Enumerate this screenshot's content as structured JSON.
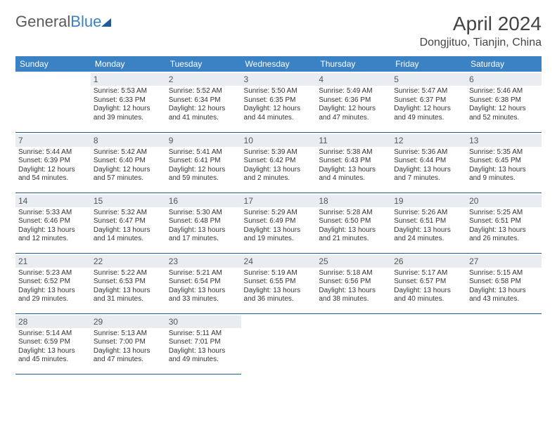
{
  "brand": {
    "part1": "General",
    "part2": "Blue"
  },
  "title": "April 2024",
  "location": "Dongjituo, Tianjin, China",
  "colors": {
    "header_bg": "#3b82c4",
    "header_text": "#ffffff",
    "daynum_bg": "#e9edf1",
    "daynum_text": "#555555",
    "cell_border": "#1f5b94",
    "body_text": "#333333",
    "logo_gray": "#5a5a5a",
    "logo_blue": "#3b82c4",
    "logo_tri": "#1f5b94"
  },
  "fonts": {
    "title_pt": 28,
    "location_pt": 16,
    "header_pt": 12,
    "daynum_pt": 12,
    "body_pt": 10
  },
  "weekdays": [
    "Sunday",
    "Monday",
    "Tuesday",
    "Wednesday",
    "Thursday",
    "Friday",
    "Saturday"
  ],
  "grid": {
    "rows": 5,
    "cols": 7,
    "first_weekday_index": 1,
    "days_in_month": 30
  },
  "days": {
    "1": {
      "sunrise": "5:53 AM",
      "sunset": "6:33 PM",
      "daylight": "12 hours and 39 minutes."
    },
    "2": {
      "sunrise": "5:52 AM",
      "sunset": "6:34 PM",
      "daylight": "12 hours and 41 minutes."
    },
    "3": {
      "sunrise": "5:50 AM",
      "sunset": "6:35 PM",
      "daylight": "12 hours and 44 minutes."
    },
    "4": {
      "sunrise": "5:49 AM",
      "sunset": "6:36 PM",
      "daylight": "12 hours and 47 minutes."
    },
    "5": {
      "sunrise": "5:47 AM",
      "sunset": "6:37 PM",
      "daylight": "12 hours and 49 minutes."
    },
    "6": {
      "sunrise": "5:46 AM",
      "sunset": "6:38 PM",
      "daylight": "12 hours and 52 minutes."
    },
    "7": {
      "sunrise": "5:44 AM",
      "sunset": "6:39 PM",
      "daylight": "12 hours and 54 minutes."
    },
    "8": {
      "sunrise": "5:42 AM",
      "sunset": "6:40 PM",
      "daylight": "12 hours and 57 minutes."
    },
    "9": {
      "sunrise": "5:41 AM",
      "sunset": "6:41 PM",
      "daylight": "12 hours and 59 minutes."
    },
    "10": {
      "sunrise": "5:39 AM",
      "sunset": "6:42 PM",
      "daylight": "13 hours and 2 minutes."
    },
    "11": {
      "sunrise": "5:38 AM",
      "sunset": "6:43 PM",
      "daylight": "13 hours and 4 minutes."
    },
    "12": {
      "sunrise": "5:36 AM",
      "sunset": "6:44 PM",
      "daylight": "13 hours and 7 minutes."
    },
    "13": {
      "sunrise": "5:35 AM",
      "sunset": "6:45 PM",
      "daylight": "13 hours and 9 minutes."
    },
    "14": {
      "sunrise": "5:33 AM",
      "sunset": "6:46 PM",
      "daylight": "13 hours and 12 minutes."
    },
    "15": {
      "sunrise": "5:32 AM",
      "sunset": "6:47 PM",
      "daylight": "13 hours and 14 minutes."
    },
    "16": {
      "sunrise": "5:30 AM",
      "sunset": "6:48 PM",
      "daylight": "13 hours and 17 minutes."
    },
    "17": {
      "sunrise": "5:29 AM",
      "sunset": "6:49 PM",
      "daylight": "13 hours and 19 minutes."
    },
    "18": {
      "sunrise": "5:28 AM",
      "sunset": "6:50 PM",
      "daylight": "13 hours and 21 minutes."
    },
    "19": {
      "sunrise": "5:26 AM",
      "sunset": "6:51 PM",
      "daylight": "13 hours and 24 minutes."
    },
    "20": {
      "sunrise": "5:25 AM",
      "sunset": "6:51 PM",
      "daylight": "13 hours and 26 minutes."
    },
    "21": {
      "sunrise": "5:23 AM",
      "sunset": "6:52 PM",
      "daylight": "13 hours and 29 minutes."
    },
    "22": {
      "sunrise": "5:22 AM",
      "sunset": "6:53 PM",
      "daylight": "13 hours and 31 minutes."
    },
    "23": {
      "sunrise": "5:21 AM",
      "sunset": "6:54 PM",
      "daylight": "13 hours and 33 minutes."
    },
    "24": {
      "sunrise": "5:19 AM",
      "sunset": "6:55 PM",
      "daylight": "13 hours and 36 minutes."
    },
    "25": {
      "sunrise": "5:18 AM",
      "sunset": "6:56 PM",
      "daylight": "13 hours and 38 minutes."
    },
    "26": {
      "sunrise": "5:17 AM",
      "sunset": "6:57 PM",
      "daylight": "13 hours and 40 minutes."
    },
    "27": {
      "sunrise": "5:15 AM",
      "sunset": "6:58 PM",
      "daylight": "13 hours and 43 minutes."
    },
    "28": {
      "sunrise": "5:14 AM",
      "sunset": "6:59 PM",
      "daylight": "13 hours and 45 minutes."
    },
    "29": {
      "sunrise": "5:13 AM",
      "sunset": "7:00 PM",
      "daylight": "13 hours and 47 minutes."
    },
    "30": {
      "sunrise": "5:11 AM",
      "sunset": "7:01 PM",
      "daylight": "13 hours and 49 minutes."
    }
  },
  "labels": {
    "sunrise": "Sunrise:",
    "sunset": "Sunset:",
    "daylight": "Daylight:"
  }
}
